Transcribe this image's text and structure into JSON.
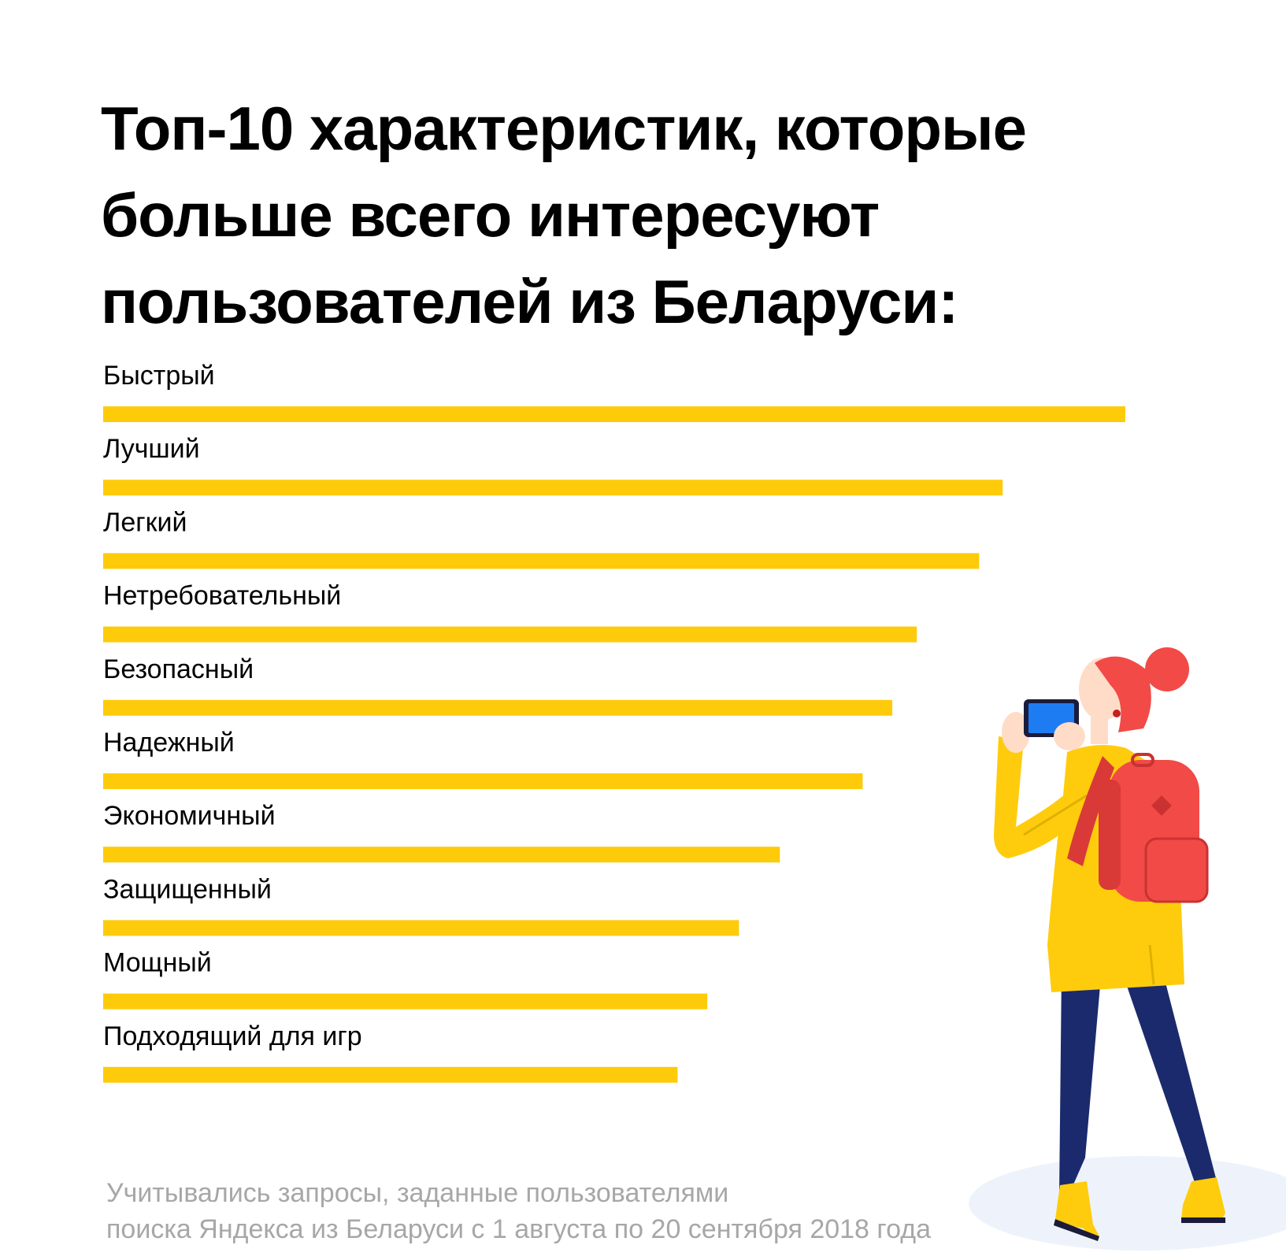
{
  "title_lines": [
    "Топ-10 характеристик, которые",
    "больше всего интересуют",
    "пользователей из Беларуси:"
  ],
  "note_lines": [
    "Учитывались запросы, заданные пользователями",
    "поиска Яндекса из Беларуси с 1 августа по 20 сентября 2018 года"
  ],
  "colors": {
    "bar": "#fecb0a",
    "label": "#000000",
    "note": "#a7a7a7"
  },
  "illustration": {
    "name": "girl-with-smartphone-illustration",
    "colors": {
      "coat": "#fecc0d",
      "backpack": "#f24a47",
      "hair": "#f24a47",
      "trousers": "#1a2a6c",
      "phone_screen": "#1e7cf2",
      "shadow": "#eef3fb"
    }
  },
  "chart_data": {
    "type": "bar",
    "orientation": "horizontal",
    "title": "Топ-10 характеристик, которые больше всего интересуют пользователей из Беларуси:",
    "categories": [
      "Быстрый",
      "Лучший",
      "Легкий",
      "Нетребовательный",
      "Безопасный",
      "Надежный",
      "Экономичный",
      "Защищенный",
      "Мощный",
      "Подходящий для игр"
    ],
    "values": [
      100,
      88,
      85.7,
      79.6,
      77.2,
      74.3,
      66.2,
      62.2,
      59.1,
      56.2
    ],
    "value_unit": "relative bar length, longest = 100 (no axis or values printed)",
    "axes_visible": false,
    "grid": false,
    "legend": "none"
  }
}
